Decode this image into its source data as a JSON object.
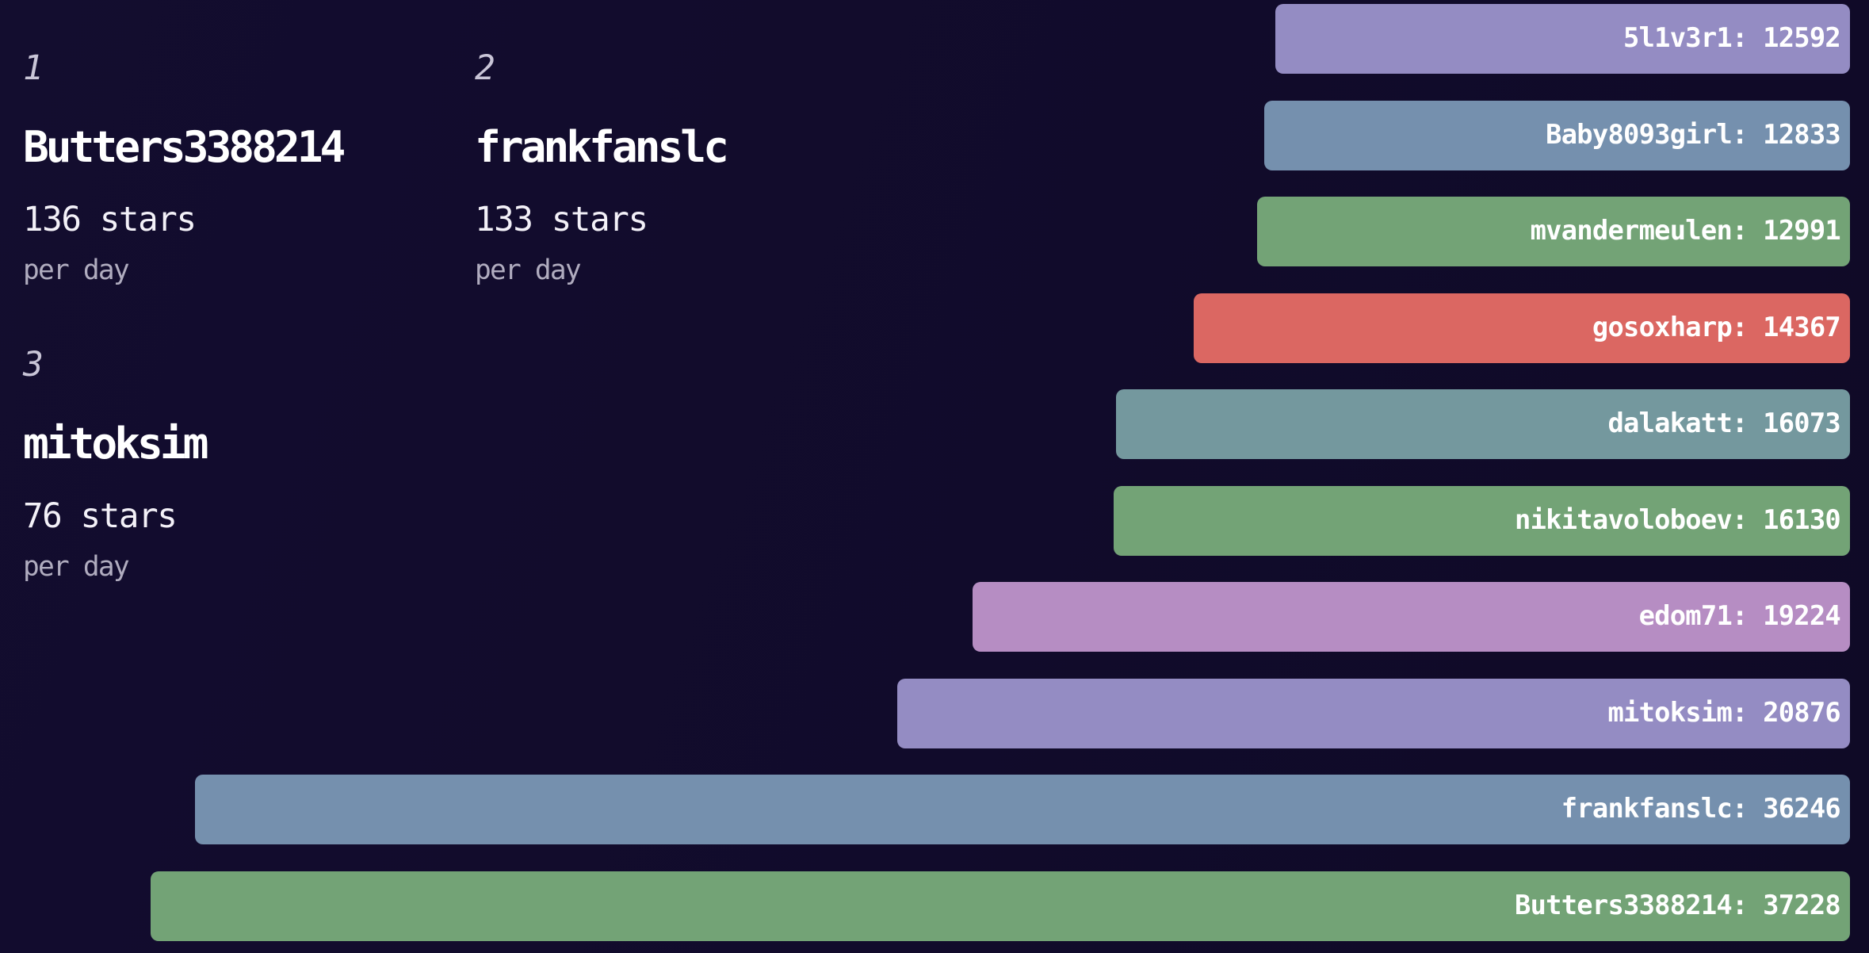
{
  "rankings": [
    {
      "rank": "1",
      "name": "Butters3388214",
      "stat": "136 stars",
      "unit": "per day"
    },
    {
      "rank": "2",
      "name": "frankfanslc",
      "stat": "133 stars",
      "unit": "per day"
    },
    {
      "rank": "3",
      "name": "mitoksim",
      "stat": "76 stars",
      "unit": "per day"
    }
  ],
  "chart_data": {
    "type": "bar",
    "orientation": "horizontal",
    "categories": [
      "5l1v3r1",
      "Baby8093girl",
      "mvandermeulen",
      "gosoxharp",
      "dalakatt",
      "nikitavoloboev",
      "edom71",
      "mitoksim",
      "frankfanslc",
      "Butters3388214"
    ],
    "values": [
      12592,
      12833,
      12991,
      14367,
      16073,
      16130,
      19224,
      20876,
      36246,
      37228
    ],
    "bar_colors": [
      "#948cc3",
      "#7590ae",
      "#73a376",
      "#db6762",
      "#74989e",
      "#73a376",
      "#b68dc3",
      "#948cc3",
      "#7590ae",
      "#73a376"
    ],
    "value_range": [
      0,
      37228
    ],
    "legend": "none",
    "grid": "off"
  },
  "colors": {
    "background": "#110b2b",
    "bar_text": "#ffffff",
    "rank_text": "#c9c5d7",
    "name_text": "#ffffff",
    "stat_text": "#f3f1f8",
    "unit_text": "#b0acbf"
  }
}
